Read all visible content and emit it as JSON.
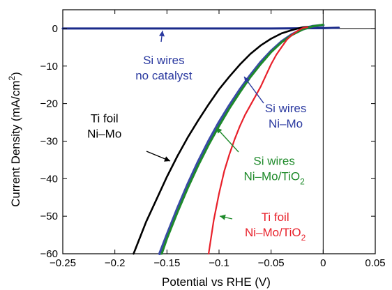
{
  "chart_data": {
    "type": "line",
    "xlabel": "Potential vs RHE (V)",
    "ylabel": "Current Density (mA/cm",
    "ylabel_sup": "2",
    "ylabel_close": ")",
    "xlim": [
      -0.25,
      0.05
    ],
    "ylim": [
      -60,
      5
    ],
    "xticks": [
      -0.25,
      -0.2,
      -0.15,
      -0.1,
      -0.05,
      0,
      0.05
    ],
    "xtick_labels": [
      "−0.25",
      "−0.2",
      "−0.15",
      "−0.1",
      "−0.05",
      "0",
      "0.05"
    ],
    "yticks": [
      0,
      -10,
      -20,
      -30,
      -40,
      -50,
      -60
    ],
    "ytick_labels": [
      "0",
      "−10",
      "−20",
      "−30",
      "−40",
      "−50",
      "−60"
    ],
    "grid": false,
    "legend": "none",
    "series": [
      {
        "name": "Si wires no catalyst",
        "color": "#1a2a8a",
        "x": [
          -0.25,
          -0.2,
          -0.15,
          -0.1,
          -0.05,
          0,
          0.015
        ],
        "y": [
          0,
          0,
          0,
          0,
          0,
          0.1,
          0.2
        ]
      },
      {
        "name": "Ti foil Ni–Mo",
        "color": "#000000",
        "x": [
          -0.182,
          -0.17,
          -0.16,
          -0.15,
          -0.14,
          -0.13,
          -0.12,
          -0.11,
          -0.1,
          -0.09,
          -0.08,
          -0.07,
          -0.06,
          -0.05,
          -0.04,
          -0.03,
          -0.02,
          -0.01
        ],
        "y": [
          -60,
          -51.5,
          -45.5,
          -39.5,
          -34,
          -29,
          -24.5,
          -20.2,
          -16.2,
          -12.8,
          -9.6,
          -6.8,
          -4.5,
          -2.7,
          -1.3,
          -0.4,
          0.3,
          0.6
        ]
      },
      {
        "name": "Si wires Ni–Mo",
        "color": "#3a4aa8",
        "x": [
          -0.157,
          -0.15,
          -0.14,
          -0.13,
          -0.12,
          -0.11,
          -0.1,
          -0.09,
          -0.08,
          -0.07,
          -0.06,
          -0.05,
          -0.04,
          -0.03,
          -0.02,
          -0.01,
          0
        ],
        "y": [
          -60,
          -55,
          -48,
          -41.5,
          -35.5,
          -30,
          -25,
          -20.5,
          -16.3,
          -12.5,
          -9,
          -6,
          -3.5,
          -1.6,
          -0.2,
          0.6,
          0.9
        ]
      },
      {
        "name": "Si wires Ni–Mo/TiO2",
        "color": "#1e8a2a",
        "x": [
          -0.155,
          -0.15,
          -0.14,
          -0.13,
          -0.12,
          -0.11,
          -0.1,
          -0.09,
          -0.08,
          -0.07,
          -0.06,
          -0.05,
          -0.04,
          -0.03,
          -0.02,
          -0.01,
          0
        ],
        "y": [
          -60,
          -56,
          -49,
          -42.5,
          -36.5,
          -31,
          -26,
          -21.3,
          -17,
          -13,
          -9.5,
          -6.3,
          -3.7,
          -1.7,
          -0.3,
          0.6,
          1.0
        ]
      },
      {
        "name": "Ti foil Ni–Mo/TiO2",
        "color": "#e8202a",
        "x": [
          -0.11,
          -0.105,
          -0.1,
          -0.095,
          -0.09,
          -0.085,
          -0.08,
          -0.075,
          -0.07,
          -0.065,
          -0.06,
          -0.055,
          -0.05,
          -0.045,
          -0.04,
          -0.035,
          -0.03,
          -0.025,
          -0.02,
          -0.015
        ],
        "y": [
          -60,
          -51,
          -44,
          -38,
          -33.5,
          -29.5,
          -26,
          -23,
          -20.5,
          -18,
          -15.5,
          -12.5,
          -9.5,
          -7,
          -5,
          -3,
          -1.7,
          -0.7,
          0.1,
          0.4
        ]
      }
    ],
    "annotations": [
      {
        "lines": [
          "Si wires",
          "no catalyst"
        ],
        "color": "#2b3aa0",
        "x": -0.153,
        "y": -9.5
      },
      {
        "lines": [
          "Ti foil",
          "Ni–Mo"
        ],
        "color": "#000000",
        "x": -0.21,
        "y": -25
      },
      {
        "lines": [
          "Si wires",
          "Ni–Mo"
        ],
        "color": "#2b3aa0",
        "x": -0.036,
        "y": -22.3
      },
      {
        "lines": [
          "Si wires",
          "Ni–Mo/TiO",
          "2"
        ],
        "color": "#1e8a2a",
        "x": -0.047,
        "y": -36.3
      },
      {
        "lines": [
          "Ti foil",
          "Ni–Mo/TiO",
          "2"
        ],
        "color": "#e8202a",
        "x": -0.046,
        "y": -51.3
      }
    ]
  }
}
